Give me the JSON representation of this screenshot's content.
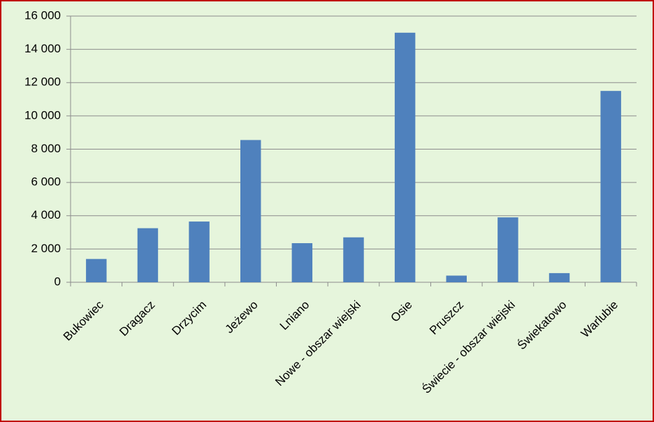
{
  "chart_data": {
    "type": "bar",
    "categories": [
      "Bukowiec",
      "Dragacz",
      "Drzycim",
      "Jeżewo",
      "Lniano",
      "Nowe - obszar wiejski",
      "Osie",
      "Pruszcz",
      "Świecie - obszar wiejski",
      "Świekatowo",
      "Warlubie"
    ],
    "values": [
      1400,
      3250,
      3650,
      8550,
      2350,
      2700,
      15000,
      400,
      3900,
      550,
      11500
    ],
    "color": "#4f81bd",
    "ylim": [
      0,
      16000
    ],
    "yticks": [
      0,
      {
        "value": 2000,
        "label": "2 000"
      },
      {
        "value": 4000,
        "label": "4 000"
      },
      {
        "value": 6000,
        "label": "6 000"
      },
      {
        "value": 8000,
        "label": "8 000"
      },
      {
        "value": 10000,
        "label": "10 000"
      },
      {
        "value": 12000,
        "label": "12 000"
      },
      {
        "value": 14000,
        "label": "14 000"
      },
      {
        "value": 16000,
        "label": "16 000"
      }
    ],
    "grid": true
  }
}
